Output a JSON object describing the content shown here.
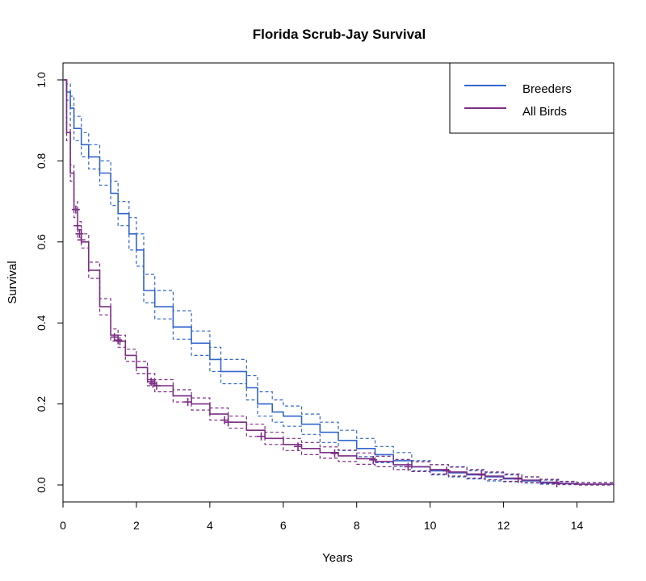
{
  "chart_data": {
    "type": "line",
    "title": "Florida Scrub-Jay Survival",
    "xlabel": "Years",
    "ylabel": "Survival",
    "xlim": [
      0,
      15
    ],
    "ylim": [
      0,
      1
    ],
    "x_ticks": [
      0,
      2,
      4,
      6,
      8,
      10,
      12,
      14
    ],
    "y_ticks": [
      0.0,
      0.2,
      0.4,
      0.6,
      0.8,
      1.0
    ],
    "x_tick_labels": [
      "0",
      "2",
      "4",
      "6",
      "8",
      "10",
      "12",
      "14"
    ],
    "y_tick_labels": [
      "0.0",
      "0.2",
      "0.4",
      "0.6",
      "0.8",
      "1.0"
    ],
    "grid": false,
    "legend_position": "top-right",
    "series": [
      {
        "name": "Breeders",
        "color": "#3366cc",
        "x": [
          0,
          0.1,
          0.2,
          0.3,
          0.5,
          0.7,
          1.0,
          1.3,
          1.5,
          1.8,
          2.0,
          2.2,
          2.5,
          3.0,
          3.5,
          4.0,
          4.3,
          5.0,
          5.3,
          5.7,
          6.0,
          6.5,
          7.0,
          7.5,
          8.0,
          8.5,
          9.0,
          9.5,
          10.0,
          10.5,
          11.0,
          11.5,
          12.0,
          12.5,
          13.0,
          13.5,
          14.0,
          15.0
        ],
        "y": [
          1.0,
          0.97,
          0.93,
          0.88,
          0.84,
          0.81,
          0.77,
          0.72,
          0.67,
          0.62,
          0.58,
          0.48,
          0.44,
          0.39,
          0.35,
          0.31,
          0.28,
          0.24,
          0.2,
          0.18,
          0.17,
          0.15,
          0.13,
          0.11,
          0.09,
          0.075,
          0.06,
          0.045,
          0.035,
          0.03,
          0.025,
          0.02,
          0.015,
          0.01,
          0.005,
          0.003,
          0.002,
          0.0
        ],
        "lower": [
          1.0,
          0.95,
          0.9,
          0.85,
          0.81,
          0.78,
          0.74,
          0.69,
          0.64,
          0.58,
          0.54,
          0.45,
          0.41,
          0.36,
          0.32,
          0.28,
          0.25,
          0.21,
          0.17,
          0.155,
          0.145,
          0.125,
          0.105,
          0.085,
          0.07,
          0.055,
          0.045,
          0.035,
          0.025,
          0.02,
          0.015,
          0.01,
          0.008,
          0.005,
          0.002,
          0.001,
          0.0,
          0.0
        ],
        "upper": [
          1.0,
          0.99,
          0.96,
          0.91,
          0.87,
          0.84,
          0.8,
          0.75,
          0.7,
          0.66,
          0.62,
          0.52,
          0.48,
          0.43,
          0.38,
          0.34,
          0.31,
          0.27,
          0.23,
          0.21,
          0.195,
          0.175,
          0.155,
          0.135,
          0.115,
          0.095,
          0.08,
          0.06,
          0.05,
          0.045,
          0.035,
          0.03,
          0.025,
          0.02,
          0.012,
          0.008,
          0.006,
          0.004
        ]
      },
      {
        "name": "All Birds",
        "color": "#7b2d84",
        "x": [
          0,
          0.1,
          0.2,
          0.3,
          0.4,
          0.5,
          0.7,
          1.0,
          1.3,
          1.5,
          1.7,
          2.0,
          2.3,
          2.5,
          3.0,
          3.5,
          4.0,
          4.5,
          5.0,
          5.5,
          6.0,
          6.5,
          7.0,
          7.5,
          8.0,
          8.5,
          9.0,
          9.5,
          10.0,
          10.5,
          11.0,
          11.5,
          12.0,
          12.5,
          13.0,
          13.5,
          14.0,
          15.0
        ],
        "y": [
          1.0,
          0.87,
          0.77,
          0.68,
          0.63,
          0.6,
          0.53,
          0.44,
          0.37,
          0.355,
          0.32,
          0.29,
          0.26,
          0.245,
          0.22,
          0.2,
          0.175,
          0.155,
          0.135,
          0.115,
          0.1,
          0.09,
          0.08,
          0.072,
          0.065,
          0.058,
          0.05,
          0.045,
          0.038,
          0.032,
          0.027,
          0.022,
          0.017,
          0.012,
          0.007,
          0.004,
          0.002,
          0.0
        ],
        "lower": [
          1.0,
          0.85,
          0.75,
          0.66,
          0.61,
          0.585,
          0.51,
          0.42,
          0.355,
          0.34,
          0.305,
          0.275,
          0.245,
          0.23,
          0.205,
          0.185,
          0.16,
          0.14,
          0.12,
          0.1,
          0.085,
          0.075,
          0.066,
          0.058,
          0.051,
          0.045,
          0.038,
          0.033,
          0.027,
          0.022,
          0.017,
          0.013,
          0.009,
          0.006,
          0.003,
          0.001,
          0.0,
          0.0
        ],
        "upper": [
          1.0,
          0.89,
          0.79,
          0.7,
          0.65,
          0.62,
          0.55,
          0.46,
          0.385,
          0.37,
          0.335,
          0.305,
          0.275,
          0.26,
          0.235,
          0.215,
          0.19,
          0.17,
          0.15,
          0.13,
          0.115,
          0.105,
          0.094,
          0.086,
          0.079,
          0.071,
          0.063,
          0.057,
          0.05,
          0.044,
          0.038,
          0.032,
          0.027,
          0.02,
          0.014,
          0.009,
          0.006,
          0.004
        ]
      }
    ],
    "censor_marks": {
      "series": "All Birds",
      "x": [
        0.35,
        0.4,
        0.45,
        0.5,
        1.4,
        1.5,
        1.55,
        2.4,
        2.45,
        2.55,
        3.4,
        4.4,
        4.5,
        5.4,
        6.4,
        7.4,
        8.45,
        9.4,
        10.45,
        11.4,
        12.4,
        13.45
      ],
      "y": [
        0.68,
        0.64,
        0.62,
        0.605,
        0.365,
        0.358,
        0.355,
        0.255,
        0.25,
        0.245,
        0.205,
        0.16,
        0.155,
        0.12,
        0.095,
        0.078,
        0.062,
        0.045,
        0.035,
        0.025,
        0.015,
        0.004
      ]
    }
  }
}
